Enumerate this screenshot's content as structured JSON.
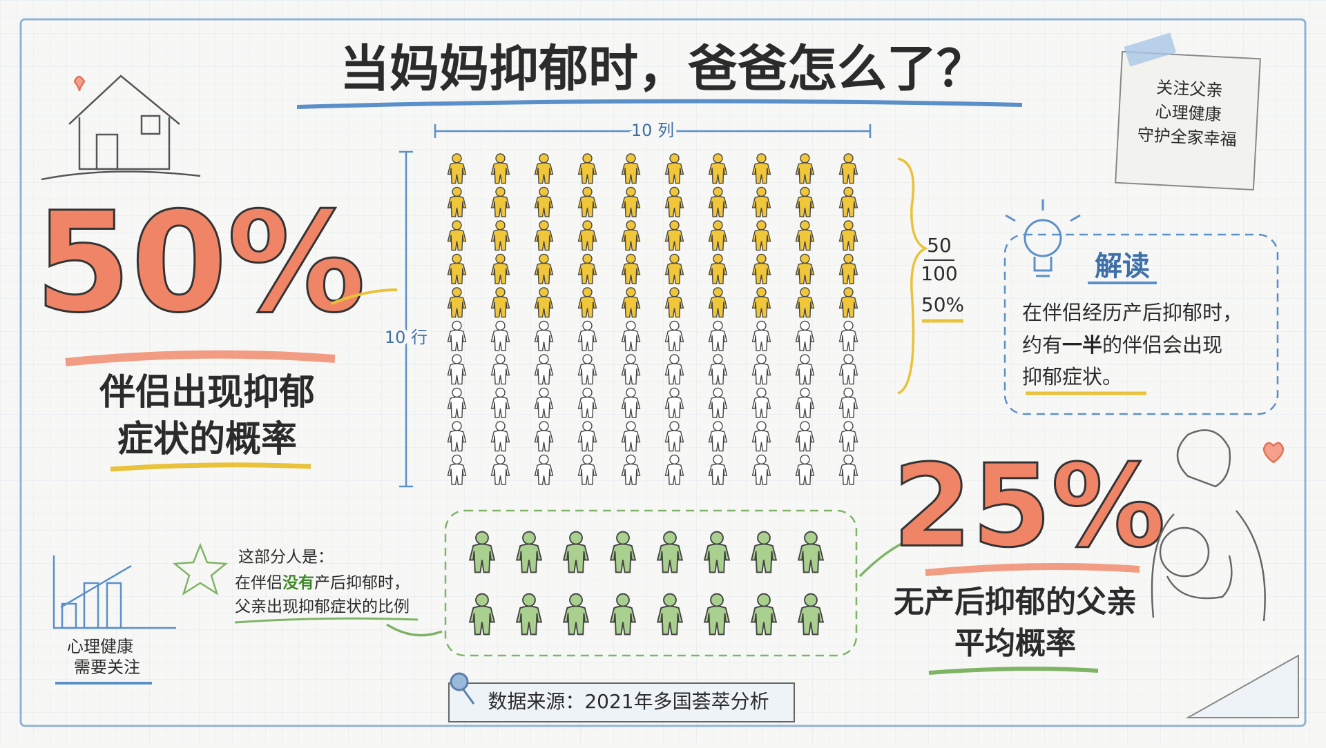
{
  "title": "当妈妈抑郁时，爸爸怎么了？",
  "sticky_note": {
    "lines": [
      "关注父亲",
      "心理健康",
      "守护全家幸福"
    ]
  },
  "main_stat": {
    "value_label": "50%",
    "caption": [
      "伴侣出现抑郁",
      "症状的概率"
    ]
  },
  "pictogram": {
    "columns_label": "10 列",
    "rows_label": "10 行",
    "filled_label": "50",
    "total_label": "100",
    "percent_label": "50%"
  },
  "explanation": {
    "title": "解读",
    "line1": "在伴侣经历产后抑郁时，",
    "line2": [
      "约有",
      "一半",
      "的伴侣会出现"
    ],
    "line3": "抑郁症状。"
  },
  "side_note": {
    "line1": "这部分人是：",
    "line2": [
      "在伴侣",
      "没有",
      "产后抑郁时，"
    ],
    "line3": "父亲出现抑郁症状的比例"
  },
  "second_stat": {
    "value_label": "25%",
    "caption": [
      "无产后抑郁的父亲",
      "平均概率"
    ]
  },
  "corner_note": [
    "心理健康",
    "需要关注"
  ],
  "source": "数据来源：2021年多国荟萃分析"
}
